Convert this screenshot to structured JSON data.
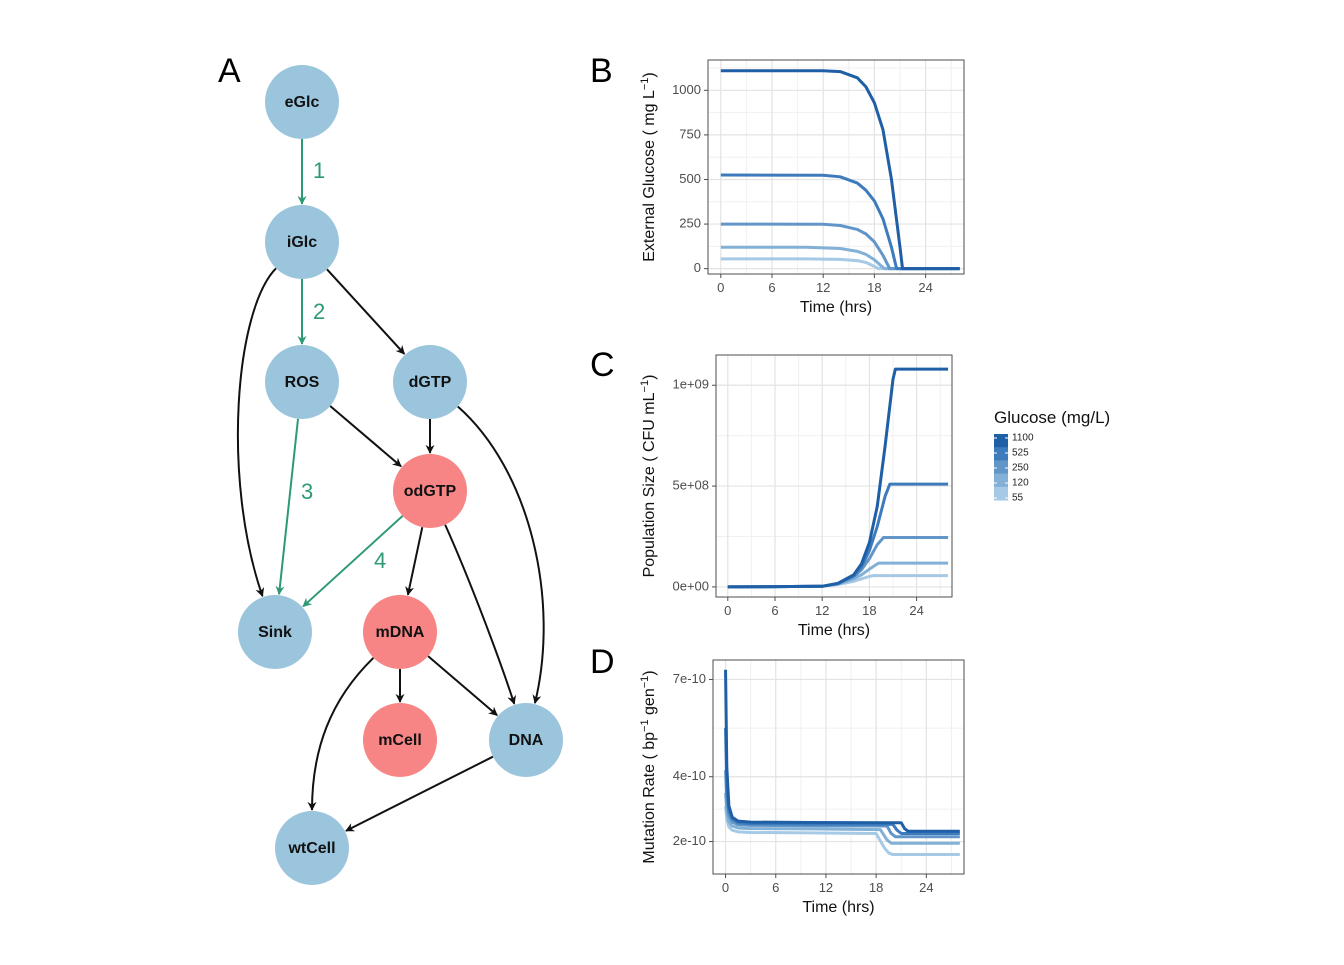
{
  "panels": {
    "a": "A",
    "b": "B",
    "c": "C",
    "d": "D"
  },
  "diagram": {
    "nodes": [
      {
        "id": "eGlc",
        "label": "eGlc",
        "color": "#9bc4dd"
      },
      {
        "id": "iGlc",
        "label": "iGlc",
        "color": "#9bc4dd"
      },
      {
        "id": "ROS",
        "label": "ROS",
        "color": "#9bc4dd"
      },
      {
        "id": "dGTP",
        "label": "dGTP",
        "color": "#9bc4dd"
      },
      {
        "id": "odGTP",
        "label": "odGTP",
        "color": "#f78585"
      },
      {
        "id": "Sink",
        "label": "Sink",
        "color": "#9bc4dd"
      },
      {
        "id": "mDNA",
        "label": "mDNA",
        "color": "#f78585"
      },
      {
        "id": "mCell",
        "label": "mCell",
        "color": "#f78585"
      },
      {
        "id": "DNA",
        "label": "DNA",
        "color": "#9bc4dd"
      },
      {
        "id": "wtCell",
        "label": "wtCell",
        "color": "#9bc4dd"
      }
    ],
    "edges": [
      {
        "from": "eGlc",
        "to": "iGlc",
        "label": "1",
        "color": "#2e9a73"
      },
      {
        "from": "iGlc",
        "to": "ROS",
        "label": "2",
        "color": "#2e9a73"
      },
      {
        "from": "iGlc",
        "to": "dGTP",
        "label": "",
        "color": "#111111"
      },
      {
        "from": "iGlc",
        "to": "Sink",
        "label": "",
        "color": "#111111"
      },
      {
        "from": "ROS",
        "to": "Sink",
        "label": "3",
        "color": "#2e9a73"
      },
      {
        "from": "ROS",
        "to": "odGTP",
        "label": "",
        "color": "#111111"
      },
      {
        "from": "dGTP",
        "to": "odGTP",
        "label": "",
        "color": "#111111"
      },
      {
        "from": "dGTP",
        "to": "DNA",
        "label": "",
        "color": "#111111"
      },
      {
        "from": "odGTP",
        "to": "Sink",
        "label": "4",
        "color": "#2e9a73"
      },
      {
        "from": "odGTP",
        "to": "mDNA",
        "label": "",
        "color": "#111111"
      },
      {
        "from": "odGTP",
        "to": "DNA",
        "label": "",
        "color": "#111111"
      },
      {
        "from": "mDNA",
        "to": "mCell",
        "label": "",
        "color": "#111111"
      },
      {
        "from": "mDNA",
        "to": "DNA",
        "label": "",
        "color": "#111111"
      },
      {
        "from": "mDNA",
        "to": "wtCell",
        "label": "",
        "color": "#111111"
      },
      {
        "from": "DNA",
        "to": "wtCell",
        "label": "",
        "color": "#111111"
      }
    ]
  },
  "legend": {
    "title": "Glucose (mg/L)",
    "labels": [
      "1100",
      "525",
      "250",
      "120",
      "55"
    ],
    "colors": [
      "#1f5fa6",
      "#3e7bbd",
      "#6296c8",
      "#82b0d6",
      "#a6c9e5"
    ]
  },
  "chart_data": [
    {
      "type": "line",
      "panel": "B",
      "xlabel": "Time (hrs)",
      "ylabel": "External Glucose ( mg L",
      "ylabel_sup": "−1",
      "ylabel_end": ")",
      "xlim": [
        -1.5,
        28.5
      ],
      "ylim": [
        -30,
        1170
      ],
      "xticks": [
        0,
        6,
        12,
        18,
        24
      ],
      "xtick_labels": [
        "0",
        "6",
        "12",
        "18",
        "24"
      ],
      "yticks": [
        0,
        250,
        500,
        750,
        1000
      ],
      "ytick_labels": [
        "0",
        "250",
        "500",
        "750",
        "1000"
      ],
      "grid": true,
      "series": [
        {
          "name": "55",
          "color": "#a6c9e5",
          "x": [
            0,
            10,
            14,
            16,
            17,
            18,
            18.5,
            28
          ],
          "y": [
            55,
            55,
            52,
            45,
            35,
            12,
            0,
            0
          ]
        },
        {
          "name": "120",
          "color": "#82b0d6",
          "x": [
            0,
            10,
            14,
            16,
            17,
            18,
            18.8,
            19.2,
            28
          ],
          "y": [
            120,
            120,
            113,
            97,
            80,
            50,
            15,
            0,
            0
          ]
        },
        {
          "name": "250",
          "color": "#6296c8",
          "x": [
            0,
            12,
            14,
            16,
            17,
            18,
            19,
            19.8,
            28
          ],
          "y": [
            250,
            249,
            242,
            220,
            195,
            150,
            75,
            0,
            0
          ]
        },
        {
          "name": "525",
          "color": "#3e7bbd",
          "x": [
            0,
            12,
            14,
            16,
            17,
            18,
            19,
            20,
            20.6,
            28
          ],
          "y": [
            525,
            524,
            515,
            480,
            440,
            380,
            280,
            120,
            0,
            0
          ]
        },
        {
          "name": "1100",
          "color": "#1f5fa6",
          "x": [
            0,
            12,
            14,
            16,
            17,
            18,
            19,
            20,
            21,
            21.3,
            28
          ],
          "y": [
            1110,
            1110,
            1105,
            1070,
            1020,
            930,
            780,
            500,
            120,
            0,
            0
          ]
        }
      ]
    },
    {
      "type": "line",
      "panel": "C",
      "xlabel": "Time (hrs)",
      "ylabel": "Population Size ( CFU mL",
      "ylabel_sup": "−1",
      "ylabel_end": ")",
      "xlim": [
        -1.5,
        28.5
      ],
      "ylim": [
        -50000000,
        1150000000
      ],
      "xticks": [
        0,
        6,
        12,
        18,
        24
      ],
      "xtick_labels": [
        "0",
        "6",
        "12",
        "18",
        "24"
      ],
      "yticks": [
        0,
        500000000,
        1000000000
      ],
      "ytick_labels": [
        "0e+00",
        "5e+08",
        "1e+09"
      ],
      "grid": true,
      "series": [
        {
          "name": "55",
          "color": "#a6c9e5",
          "x": [
            0,
            12,
            14,
            16,
            17,
            18,
            18.5,
            28
          ],
          "y": [
            0,
            3000000,
            12000000,
            28000000,
            40000000,
            52000000,
            56000000,
            56000000
          ]
        },
        {
          "name": "120",
          "color": "#82b0d6",
          "x": [
            0,
            12,
            14,
            16,
            17,
            18,
            19,
            19.2,
            28
          ],
          "y": [
            0,
            3000000,
            15000000,
            40000000,
            60000000,
            88000000,
            114000000,
            118000000,
            118000000
          ]
        },
        {
          "name": "250",
          "color": "#6296c8",
          "x": [
            0,
            12,
            14,
            16,
            17,
            18,
            19,
            19.8,
            28
          ],
          "y": [
            0,
            3000000,
            16000000,
            50000000,
            85000000,
            140000000,
            210000000,
            245000000,
            245000000
          ]
        },
        {
          "name": "525",
          "color": "#3e7bbd",
          "x": [
            0,
            12,
            14,
            16,
            17,
            18,
            19,
            20,
            20.6,
            28
          ],
          "y": [
            0,
            3000000,
            17000000,
            55000000,
            100000000,
            180000000,
            300000000,
            450000000,
            510000000,
            510000000
          ]
        },
        {
          "name": "1100",
          "color": "#1f5fa6",
          "x": [
            0,
            12,
            14,
            16,
            17,
            18,
            19,
            20,
            21,
            21.3,
            28
          ],
          "y": [
            0,
            3000000,
            18000000,
            60000000,
            115000000,
            220000000,
            400000000,
            700000000,
            1030000000,
            1080000000,
            1080000000
          ]
        }
      ]
    },
    {
      "type": "line",
      "panel": "D",
      "xlabel": "Time (hrs)",
      "ylabel": "Mutation Rate ( bp",
      "ylabel_sup": "−1",
      "ylabel_mid": " gen",
      "ylabel_sup2": "−1",
      "ylabel_end": ")",
      "xlim": [
        -1.5,
        28.5
      ],
      "ylim": [
        1e-10,
        7.6e-10
      ],
      "xticks": [
        0,
        6,
        12,
        18,
        24
      ],
      "xtick_labels": [
        "0",
        "6",
        "12",
        "18",
        "24"
      ],
      "yticks": [
        2e-10,
        4e-10,
        7e-10
      ],
      "ytick_labels": [
        "2e-10",
        "4e-10",
        "7e-10"
      ],
      "grid": true,
      "series": [
        {
          "name": "55",
          "color": "#a6c9e5",
          "x": [
            0,
            0.15,
            0.4,
            0.8,
            1.5,
            3,
            10,
            18,
            19,
            19.5,
            20,
            28
          ],
          "y": [
            3.1e-10,
            2.7e-10,
            2.45e-10,
            2.35e-10,
            2.3e-10,
            2.28e-10,
            2.27e-10,
            2.25e-10,
            1.8e-10,
            1.65e-10,
            1.6e-10,
            1.6e-10
          ]
        },
        {
          "name": "120",
          "color": "#82b0d6",
          "x": [
            0,
            0.15,
            0.4,
            0.8,
            1.5,
            3,
            10,
            18.5,
            19.3,
            19.8,
            28
          ],
          "y": [
            3.5e-10,
            2.9e-10,
            2.6e-10,
            2.48e-10,
            2.42e-10,
            2.4e-10,
            2.39e-10,
            2.37e-10,
            2.05e-10,
            1.95e-10,
            1.95e-10
          ]
        },
        {
          "name": "250",
          "color": "#6296c8",
          "x": [
            0,
            0.15,
            0.4,
            0.8,
            1.5,
            3,
            10,
            19.3,
            19.8,
            20.3,
            28
          ],
          "y": [
            4.2e-10,
            3.2e-10,
            2.8e-10,
            2.6e-10,
            2.52e-10,
            2.5e-10,
            2.49e-10,
            2.48e-10,
            2.25e-10,
            2.15e-10,
            2.15e-10
          ]
        },
        {
          "name": "525",
          "color": "#3e7bbd",
          "x": [
            0,
            0.15,
            0.4,
            0.8,
            1.5,
            3,
            10,
            20,
            20.5,
            21,
            28
          ],
          "y": [
            5.5e-10,
            3.6e-10,
            2.95e-10,
            2.7e-10,
            2.58e-10,
            2.55e-10,
            2.54e-10,
            2.53e-10,
            2.35e-10,
            2.25e-10,
            2.25e-10
          ]
        },
        {
          "name": "1100",
          "color": "#1f5fa6",
          "x": [
            0,
            0.15,
            0.4,
            0.8,
            1.5,
            3,
            10,
            21,
            21.4,
            21.8,
            28
          ],
          "y": [
            7.3e-10,
            4.3e-10,
            3.1e-10,
            2.75e-10,
            2.63e-10,
            2.6e-10,
            2.59e-10,
            2.58e-10,
            2.4e-10,
            2.32e-10,
            2.32e-10
          ]
        }
      ]
    }
  ]
}
